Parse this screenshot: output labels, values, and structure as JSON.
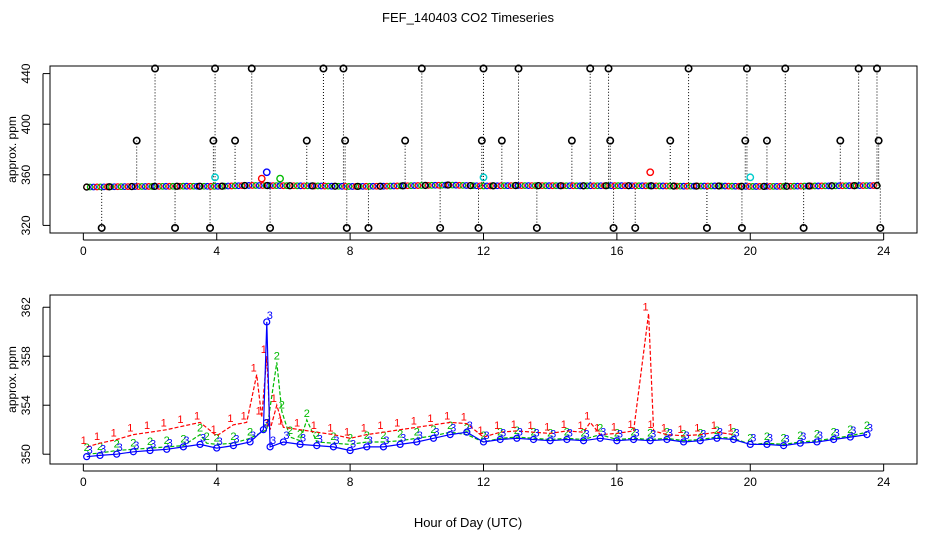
{
  "title": "FEF_140403  CO2 Timeseries",
  "xlabel": "Hour of Day (UTC)",
  "colors": {
    "series1": "#ff0000",
    "series2": "#00bb00",
    "series3": "#0000ff",
    "cyan": "#00cccc",
    "black": "#000000",
    "spike_line": "#888888"
  },
  "chart_data": [
    {
      "type": "scatter",
      "ylabel": "approx. ppm",
      "x_ticks": [
        0,
        4,
        8,
        12,
        16,
        20,
        24
      ],
      "y_ticks": [
        320,
        360,
        400,
        440
      ],
      "xlim": [
        -1,
        25
      ],
      "ylim": [
        314,
        446
      ],
      "grid": false,
      "baseline": [
        [
          0.1,
          350.3
        ],
        [
          1.0,
          350.6
        ],
        [
          2.0,
          350.8
        ],
        [
          3.0,
          351.0
        ],
        [
          4.0,
          350.9
        ],
        [
          5.0,
          351.6
        ],
        [
          6.0,
          351.4
        ],
        [
          7.0,
          351.2
        ],
        [
          8.0,
          350.8
        ],
        [
          9.0,
          351.0
        ],
        [
          10.0,
          351.5
        ],
        [
          11.0,
          351.9
        ],
        [
          12.0,
          351.2
        ],
        [
          13.0,
          351.5
        ],
        [
          14.0,
          351.4
        ],
        [
          15.0,
          351.3
        ],
        [
          16.0,
          351.4
        ],
        [
          17.0,
          351.3
        ],
        [
          18.0,
          351.0
        ],
        [
          19.0,
          351.2
        ],
        [
          20.0,
          350.8
        ],
        [
          21.0,
          350.9
        ],
        [
          22.0,
          351.2
        ],
        [
          23.0,
          351.4
        ],
        [
          23.8,
          351.5
        ]
      ],
      "spikes": [
        [
          0.55,
          318
        ],
        [
          1.6,
          387
        ],
        [
          2.15,
          444
        ],
        [
          2.75,
          318
        ],
        [
          3.8,
          318
        ],
        [
          3.9,
          387
        ],
        [
          3.95,
          444
        ],
        [
          4.55,
          387
        ],
        [
          5.05,
          444
        ],
        [
          5.6,
          318
        ],
        [
          6.7,
          387
        ],
        [
          7.2,
          444
        ],
        [
          7.8,
          444
        ],
        [
          7.85,
          387
        ],
        [
          7.9,
          318
        ],
        [
          8.55,
          318
        ],
        [
          9.65,
          387
        ],
        [
          10.15,
          444
        ],
        [
          10.7,
          318
        ],
        [
          11.85,
          318
        ],
        [
          11.95,
          387
        ],
        [
          12.0,
          444
        ],
        [
          12.55,
          387
        ],
        [
          13.05,
          444
        ],
        [
          13.6,
          318
        ],
        [
          14.65,
          387
        ],
        [
          15.2,
          444
        ],
        [
          15.75,
          444
        ],
        [
          15.8,
          387
        ],
        [
          15.9,
          318
        ],
        [
          16.55,
          318
        ],
        [
          17.6,
          387
        ],
        [
          18.15,
          444
        ],
        [
          18.7,
          318
        ],
        [
          19.75,
          318
        ],
        [
          19.85,
          387
        ],
        [
          19.9,
          444
        ],
        [
          20.5,
          387
        ],
        [
          21.05,
          444
        ],
        [
          21.6,
          318
        ],
        [
          22.7,
          387
        ],
        [
          23.25,
          444
        ],
        [
          23.8,
          444
        ],
        [
          23.85,
          387
        ],
        [
          23.9,
          318
        ]
      ],
      "colored_outliers": [
        {
          "x": 5.5,
          "y": 362,
          "color": "series3"
        },
        {
          "x": 5.35,
          "y": 357,
          "color": "series1"
        },
        {
          "x": 5.9,
          "y": 357,
          "color": "series2"
        },
        {
          "x": 17.0,
          "y": 362,
          "color": "series1"
        },
        {
          "x": 3.95,
          "y": 358,
          "color": "cyan"
        },
        {
          "x": 12.0,
          "y": 358,
          "color": "cyan"
        },
        {
          "x": 20.0,
          "y": 358,
          "color": "cyan"
        }
      ]
    },
    {
      "type": "line",
      "ylabel": "approx. ppm",
      "x_ticks": [
        0,
        4,
        8,
        12,
        16,
        20,
        24
      ],
      "y_ticks": [
        350,
        354,
        358,
        362
      ],
      "xlim": [
        -1,
        25
      ],
      "ylim": [
        349.2,
        363.0
      ],
      "grid": false,
      "series": [
        {
          "name": "1",
          "color": "series1",
          "points": [
            [
              0.1,
              350.6
            ],
            [
              0.5,
              350.9
            ],
            [
              1.0,
              351.2
            ],
            [
              1.5,
              351.6
            ],
            [
              2.0,
              351.8
            ],
            [
              2.5,
              352.0
            ],
            [
              3.0,
              352.3
            ],
            [
              3.5,
              352.6
            ],
            [
              4.0,
              351.5
            ],
            [
              4.5,
              352.4
            ],
            [
              4.9,
              352.6
            ],
            [
              5.2,
              356.5
            ],
            [
              5.35,
              353.0
            ],
            [
              5.5,
              358.0
            ],
            [
              5.6,
              352.0
            ],
            [
              5.8,
              354.0
            ],
            [
              6.0,
              352.2
            ],
            [
              6.5,
              352.0
            ],
            [
              7.0,
              351.8
            ],
            [
              7.5,
              351.6
            ],
            [
              8.0,
              351.3
            ],
            [
              8.5,
              351.6
            ],
            [
              9.0,
              351.8
            ],
            [
              9.5,
              352.0
            ],
            [
              10.0,
              352.2
            ],
            [
              10.5,
              352.4
            ],
            [
              11.0,
              352.6
            ],
            [
              11.5,
              352.5
            ],
            [
              12.0,
              351.4
            ],
            [
              12.5,
              351.8
            ],
            [
              13.0,
              351.9
            ],
            [
              13.5,
              351.8
            ],
            [
              14.0,
              351.7
            ],
            [
              14.5,
              351.9
            ],
            [
              15.0,
              351.8
            ],
            [
              15.2,
              352.6
            ],
            [
              15.5,
              351.6
            ],
            [
              16.0,
              351.7
            ],
            [
              16.5,
              351.9
            ],
            [
              16.95,
              361.5
            ],
            [
              17.1,
              351.9
            ],
            [
              17.5,
              351.6
            ],
            [
              18.0,
              351.5
            ],
            [
              18.5,
              351.6
            ],
            [
              19.0,
              351.8
            ],
            [
              19.5,
              351.6
            ]
          ]
        },
        {
          "name": "2",
          "color": "series2",
          "points": [
            [
              0.1,
              350.0
            ],
            [
              0.5,
              350.1
            ],
            [
              1.0,
              350.3
            ],
            [
              1.5,
              350.4
            ],
            [
              2.0,
              350.5
            ],
            [
              2.5,
              350.6
            ],
            [
              3.0,
              350.7
            ],
            [
              3.5,
              351.6
            ],
            [
              3.7,
              350.9
            ],
            [
              4.0,
              350.8
            ],
            [
              4.5,
              350.9
            ],
            [
              5.0,
              351.3
            ],
            [
              5.5,
              352.0
            ],
            [
              5.8,
              357.5
            ],
            [
              5.95,
              353.5
            ],
            [
              6.2,
              351.4
            ],
            [
              6.5,
              351.1
            ],
            [
              6.7,
              352.8
            ],
            [
              7.0,
              351.0
            ],
            [
              7.5,
              350.9
            ],
            [
              8.0,
              350.8
            ],
            [
              8.5,
              351.0
            ],
            [
              9.0,
              351.0
            ],
            [
              9.5,
              351.1
            ],
            [
              10.0,
              351.3
            ],
            [
              10.5,
              351.5
            ],
            [
              11.0,
              351.8
            ],
            [
              11.5,
              351.6
            ],
            [
              12.0,
              351.0
            ],
            [
              12.5,
              351.3
            ],
            [
              13.0,
              351.4
            ],
            [
              13.5,
              351.3
            ],
            [
              14.0,
              351.2
            ],
            [
              14.5,
              351.3
            ],
            [
              15.0,
              351.2
            ],
            [
              15.5,
              351.6
            ],
            [
              16.0,
              351.2
            ],
            [
              16.5,
              351.3
            ],
            [
              17.0,
              351.2
            ],
            [
              17.5,
              351.3
            ],
            [
              18.0,
              351.1
            ],
            [
              18.5,
              351.2
            ],
            [
              19.0,
              351.4
            ],
            [
              19.5,
              351.3
            ],
            [
              20.0,
              350.8
            ],
            [
              20.5,
              350.9
            ],
            [
              21.0,
              350.8
            ],
            [
              21.5,
              351.0
            ],
            [
              22.0,
              351.1
            ],
            [
              22.5,
              351.3
            ],
            [
              23.0,
              351.5
            ],
            [
              23.5,
              351.8
            ]
          ]
        },
        {
          "name": "3",
          "color": "series3",
          "points": [
            [
              0.1,
              349.8
            ],
            [
              0.5,
              349.9
            ],
            [
              1.0,
              350.0
            ],
            [
              1.5,
              350.2
            ],
            [
              2.0,
              350.3
            ],
            [
              2.5,
              350.4
            ],
            [
              3.0,
              350.6
            ],
            [
              3.5,
              350.8
            ],
            [
              4.0,
              350.5
            ],
            [
              4.5,
              350.7
            ],
            [
              5.0,
              351.0
            ],
            [
              5.4,
              352.0
            ],
            [
              5.5,
              360.8
            ],
            [
              5.6,
              350.6
            ],
            [
              6.0,
              351.0
            ],
            [
              6.5,
              350.8
            ],
            [
              7.0,
              350.7
            ],
            [
              7.5,
              350.6
            ],
            [
              8.0,
              350.3
            ],
            [
              8.5,
              350.6
            ],
            [
              9.0,
              350.6
            ],
            [
              9.5,
              350.8
            ],
            [
              10.0,
              351.0
            ],
            [
              10.5,
              351.3
            ],
            [
              11.0,
              351.6
            ],
            [
              11.5,
              351.8
            ],
            [
              12.0,
              351.0
            ],
            [
              12.5,
              351.2
            ],
            [
              13.0,
              351.3
            ],
            [
              13.5,
              351.2
            ],
            [
              14.0,
              351.1
            ],
            [
              14.5,
              351.2
            ],
            [
              15.0,
              351.1
            ],
            [
              15.5,
              351.3
            ],
            [
              16.0,
              351.1
            ],
            [
              16.5,
              351.2
            ],
            [
              17.0,
              351.1
            ],
            [
              17.5,
              351.2
            ],
            [
              18.0,
              351.0
            ],
            [
              18.5,
              351.1
            ],
            [
              19.0,
              351.3
            ],
            [
              19.5,
              351.2
            ],
            [
              20.0,
              350.8
            ],
            [
              20.5,
              350.8
            ],
            [
              21.0,
              350.7
            ],
            [
              21.5,
              350.9
            ],
            [
              22.0,
              351.0
            ],
            [
              22.5,
              351.2
            ],
            [
              23.0,
              351.4
            ],
            [
              23.5,
              351.6
            ]
          ]
        }
      ]
    }
  ]
}
